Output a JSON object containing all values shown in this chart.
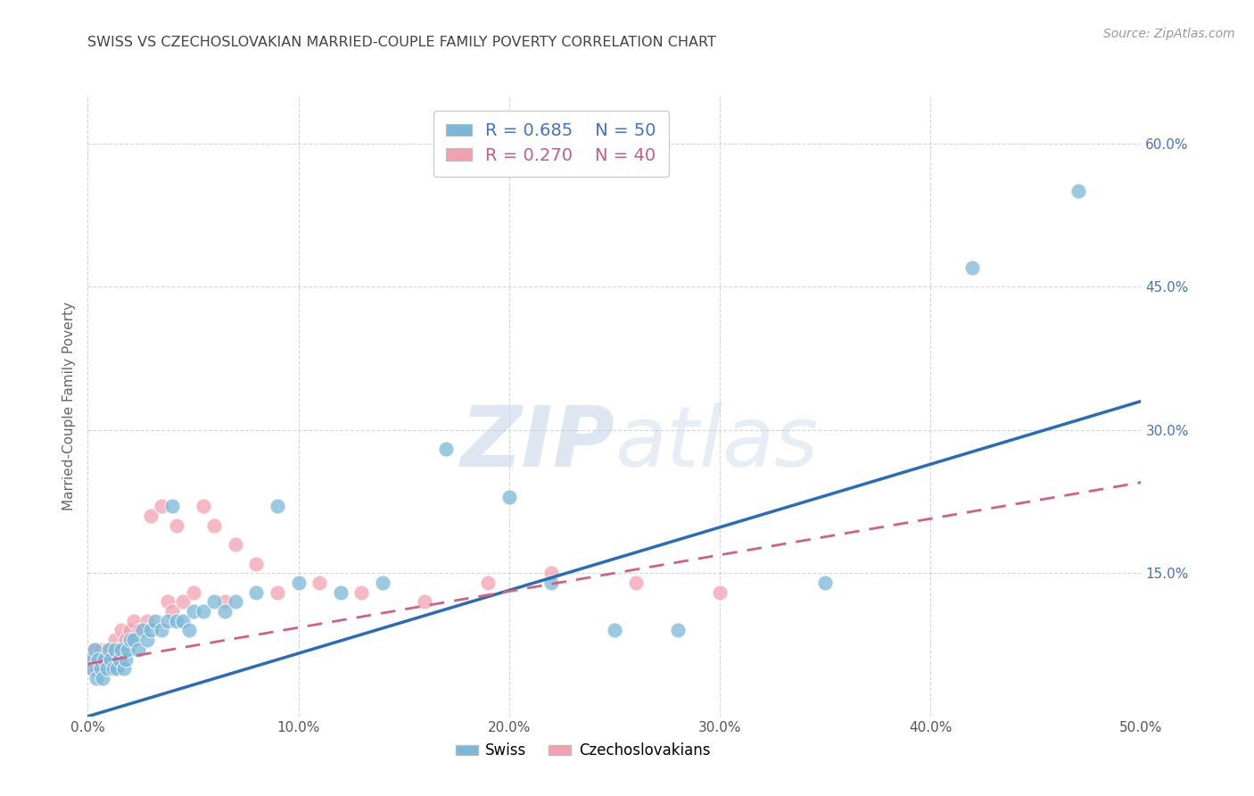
{
  "title": "SWISS VS CZECHOSLOVAKIAN MARRIED-COUPLE FAMILY POVERTY CORRELATION CHART",
  "source": "Source: ZipAtlas.com",
  "ylabel": "Married-Couple Family Poverty",
  "xlim": [
    0.0,
    0.5
  ],
  "ylim": [
    0.0,
    0.65
  ],
  "xticks": [
    0.0,
    0.1,
    0.2,
    0.3,
    0.4,
    0.5
  ],
  "yticks": [
    0.0,
    0.15,
    0.3,
    0.45,
    0.6
  ],
  "right_ytick_labels": [
    "",
    "15.0%",
    "30.0%",
    "45.0%",
    "60.0%"
  ],
  "xtick_labels": [
    "0.0%",
    "10.0%",
    "20.0%",
    "30.0%",
    "40.0%",
    "50.0%"
  ],
  "swiss_color": "#7ab8d9",
  "czech_color": "#f4a0b0",
  "swiss_line_color": "#2b6cb8",
  "czech_line_color": "#d46080",
  "swiss_R": 0.685,
  "swiss_N": 50,
  "czech_R": 0.27,
  "czech_N": 40,
  "background_color": "#ffffff",
  "swiss_line_x0": 0.0,
  "swiss_line_y0": 0.0,
  "swiss_line_x1": 0.5,
  "swiss_line_y1": 0.33,
  "czech_line_x0": 0.0,
  "czech_line_y0": 0.055,
  "czech_line_x1": 0.5,
  "czech_line_y1": 0.245,
  "swiss_scatter_x": [
    0.001,
    0.002,
    0.003,
    0.004,
    0.005,
    0.006,
    0.007,
    0.008,
    0.009,
    0.01,
    0.011,
    0.012,
    0.013,
    0.014,
    0.015,
    0.016,
    0.017,
    0.018,
    0.019,
    0.02,
    0.022,
    0.024,
    0.026,
    0.028,
    0.03,
    0.032,
    0.035,
    0.038,
    0.04,
    0.042,
    0.045,
    0.048,
    0.05,
    0.055,
    0.06,
    0.065,
    0.07,
    0.08,
    0.09,
    0.1,
    0.12,
    0.14,
    0.17,
    0.2,
    0.22,
    0.25,
    0.28,
    0.35,
    0.42,
    0.47
  ],
  "swiss_scatter_y": [
    0.06,
    0.05,
    0.07,
    0.04,
    0.06,
    0.05,
    0.04,
    0.06,
    0.05,
    0.07,
    0.06,
    0.05,
    0.07,
    0.05,
    0.06,
    0.07,
    0.05,
    0.06,
    0.07,
    0.08,
    0.08,
    0.07,
    0.09,
    0.08,
    0.09,
    0.1,
    0.09,
    0.1,
    0.22,
    0.1,
    0.1,
    0.09,
    0.11,
    0.11,
    0.12,
    0.11,
    0.12,
    0.13,
    0.22,
    0.14,
    0.13,
    0.14,
    0.28,
    0.23,
    0.14,
    0.09,
    0.09,
    0.14,
    0.47,
    0.55
  ],
  "czech_scatter_x": [
    0.001,
    0.002,
    0.003,
    0.004,
    0.005,
    0.006,
    0.007,
    0.008,
    0.009,
    0.01,
    0.011,
    0.012,
    0.013,
    0.015,
    0.016,
    0.018,
    0.02,
    0.022,
    0.025,
    0.028,
    0.03,
    0.035,
    0.038,
    0.04,
    0.042,
    0.045,
    0.05,
    0.055,
    0.06,
    0.065,
    0.07,
    0.08,
    0.09,
    0.11,
    0.13,
    0.16,
    0.19,
    0.22,
    0.26,
    0.3
  ],
  "czech_scatter_y": [
    0.06,
    0.05,
    0.07,
    0.05,
    0.06,
    0.07,
    0.06,
    0.05,
    0.07,
    0.06,
    0.07,
    0.06,
    0.08,
    0.07,
    0.09,
    0.08,
    0.09,
    0.1,
    0.09,
    0.1,
    0.21,
    0.22,
    0.12,
    0.11,
    0.2,
    0.12,
    0.13,
    0.22,
    0.2,
    0.12,
    0.18,
    0.16,
    0.13,
    0.14,
    0.13,
    0.12,
    0.14,
    0.15,
    0.14,
    0.13
  ]
}
